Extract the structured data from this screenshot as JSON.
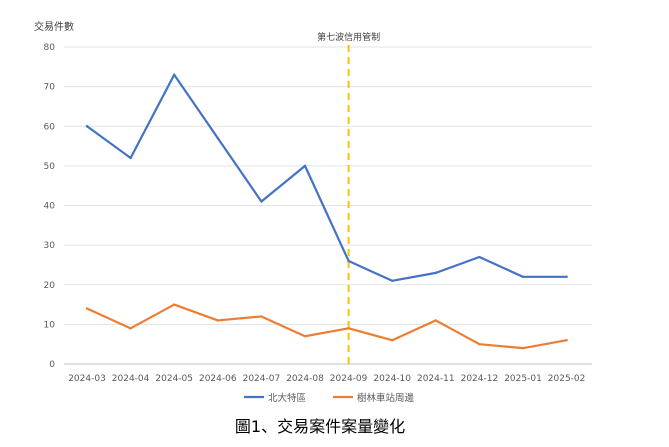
{
  "chart_data": {
    "type": "line",
    "title": "",
    "xlabel": "",
    "ylabel": "交易件數",
    "ylim": [
      0,
      80
    ],
    "yticks": [
      0,
      10,
      20,
      30,
      40,
      50,
      60,
      70,
      80
    ],
    "grid": true,
    "legend_position": "bottom",
    "categories": [
      "2024-03",
      "2024-04",
      "2024-05",
      "2024-06",
      "2024-07",
      "2024-08",
      "2024-09",
      "2024-10",
      "2024-11",
      "2024-12",
      "2025-01",
      "2025-02"
    ],
    "series": [
      {
        "name": "北大特區",
        "color": "#4472C4",
        "values": [
          60,
          52,
          73,
          57,
          41,
          50,
          26,
          21,
          23,
          27,
          22,
          22
        ]
      },
      {
        "name": "樹林車站周邊",
        "color": "#ED7D31",
        "values": [
          14,
          9,
          15,
          11,
          12,
          7,
          9,
          6,
          11,
          5,
          4,
          6
        ]
      }
    ],
    "annotations": [
      {
        "category": "2024-09",
        "label": "第七波信用管制",
        "color": "#FFC000",
        "style": "dashed"
      }
    ]
  },
  "caption": "圖1、交易案件案量變化"
}
